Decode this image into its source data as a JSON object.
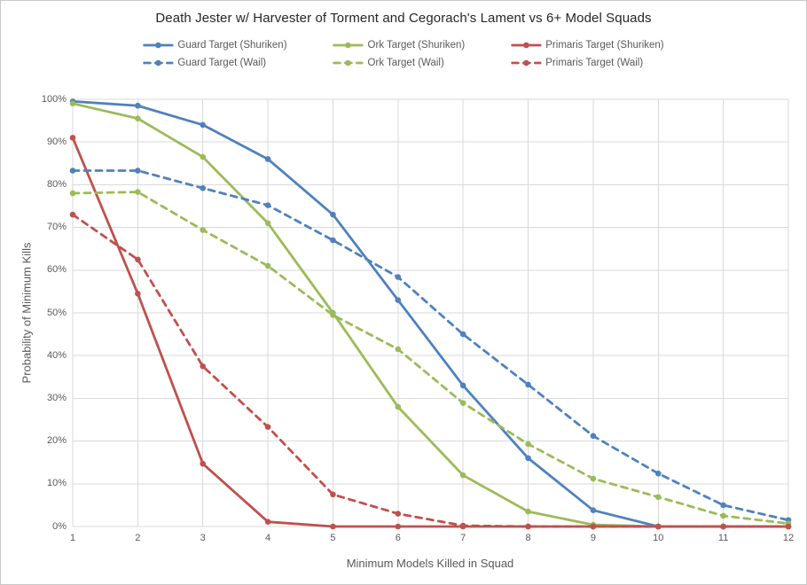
{
  "chart_data": {
    "type": "line",
    "title": "Death Jester w/ Harvester of Torment and Cegorach's Lament vs 6+ Model Squads",
    "xlabel": "Minimum Models Killed in Squad",
    "ylabel": "Probability of Minimum Kills",
    "x": [
      1,
      2,
      3,
      4,
      5,
      6,
      7,
      8,
      9,
      10,
      11,
      12
    ],
    "xtick_labels": [
      "1",
      "2",
      "3",
      "4",
      "5",
      "6",
      "7",
      "8",
      "9",
      "10",
      "11",
      "12"
    ],
    "ytick_labels": [
      "0%",
      "10%",
      "20%",
      "30%",
      "40%",
      "50%",
      "60%",
      "70%",
      "80%",
      "90%",
      "100%"
    ],
    "xlim": [
      1,
      12
    ],
    "ylim": [
      0,
      100
    ],
    "ytick_step": 10,
    "grid": true,
    "legend_position": "top",
    "series": [
      {
        "name": "Guard Target (Shuriken)",
        "color": "#4F81BD",
        "dash": false,
        "values": [
          99.5,
          98.5,
          94.0,
          86.0,
          73.0,
          53.0,
          33.0,
          16.0,
          3.8,
          0.0,
          0.0,
          0.0
        ]
      },
      {
        "name": "Ork Target (Shuriken)",
        "color": "#9BBB59",
        "dash": false,
        "values": [
          99.0,
          95.5,
          86.5,
          71.0,
          50.0,
          28.0,
          12.0,
          3.5,
          0.4,
          0.0,
          0.0,
          0.0
        ]
      },
      {
        "name": "Primaris Target (Shuriken)",
        "color": "#C0504D",
        "dash": false,
        "values": [
          91.0,
          54.5,
          14.7,
          1.1,
          0.0,
          0.0,
          0.0,
          0.0,
          0.0,
          0.0,
          0.0,
          0.0
        ]
      },
      {
        "name": "Guard Target (Wail)",
        "color": "#4F81BD",
        "dash": true,
        "values": [
          83.3,
          83.3,
          79.2,
          75.2,
          67.0,
          58.4,
          45.0,
          33.2,
          21.2,
          12.4,
          5.0,
          1.5
        ]
      },
      {
        "name": "Ork Target (Wail)",
        "color": "#9BBB59",
        "dash": true,
        "values": [
          78.0,
          78.3,
          69.4,
          61.0,
          49.5,
          41.5,
          28.9,
          19.3,
          11.2,
          6.9,
          2.5,
          0.7
        ]
      },
      {
        "name": "Primaris Target (Wail)",
        "color": "#C0504D",
        "dash": true,
        "values": [
          73.0,
          62.5,
          37.5,
          23.3,
          7.5,
          3.0,
          0.2,
          0.0,
          0.0,
          0.0,
          0.0,
          0.0
        ]
      }
    ],
    "colors": {
      "gridline": "#D9D9D9",
      "axis_text": "#595959",
      "title_text": "#262626",
      "frame_border": "#C9C9C9"
    }
  }
}
